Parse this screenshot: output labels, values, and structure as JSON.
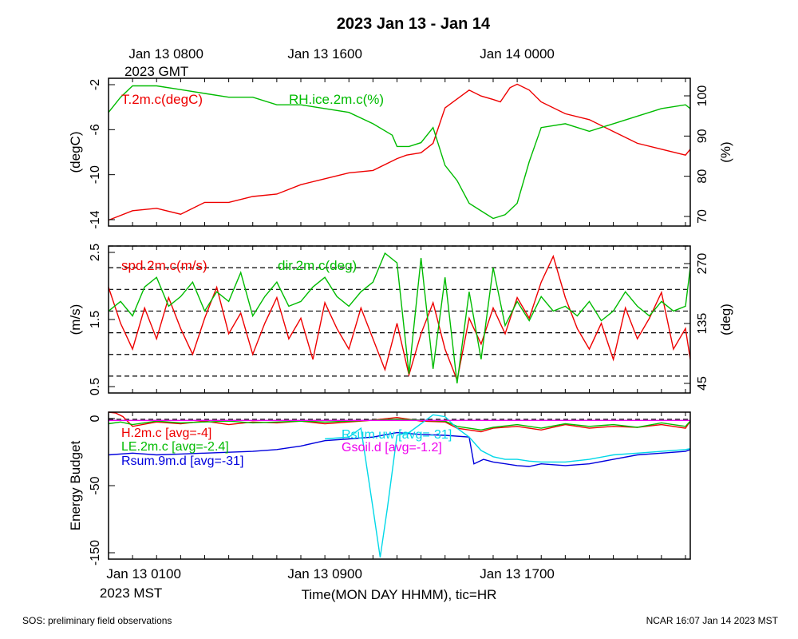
{
  "page_title": "2023 Jan 13 - Jan 14",
  "footer": {
    "left": "SOS: preliminary field observations",
    "right": "NCAR 16:07 Jan 14 2023 MST"
  },
  "time_axis": {
    "top_labels": [
      {
        "hour": 1,
        "line1": "Jan 13 0800",
        "line2": "2023 GMT"
      },
      {
        "hour": 9,
        "line1": "Jan 13 1600",
        "line2": ""
      },
      {
        "hour": 17,
        "line1": "Jan 14 0000",
        "line2": ""
      }
    ],
    "bottom_labels": [
      {
        "hour": 1,
        "line1": "Jan 13 0100",
        "line2": "2023 MST"
      },
      {
        "hour": 9,
        "line1": "Jan 13 0900",
        "line2": ""
      },
      {
        "hour": 17,
        "line1": "Jan 13 1700",
        "line2": ""
      }
    ],
    "xlabel": "Time(MON DAY HHMM), tic=HR",
    "xlim_hours_mst": [
      0.0,
      24.2
    ],
    "minor_tick_every_hours": 1
  },
  "chart_data": [
    {
      "type": "line",
      "ylabel_left": "(degC)",
      "ylabel_right": "(%)",
      "ylim_left": [
        -14.5,
        -2.0
      ],
      "ylim_right": [
        66,
        105
      ],
      "yticks_left": [
        "-2",
        "-6",
        "-10",
        "-14"
      ],
      "yticks_right": [
        "100",
        "90",
        "80",
        "70"
      ],
      "grid": false,
      "legend_placement": "top-left",
      "series": [
        {
          "name": "T.2m.c(degC)",
          "axis": "left",
          "color": "#ee0000",
          "x": [
            0.0,
            1,
            2,
            3,
            4,
            5,
            6,
            7,
            8,
            9,
            10,
            11,
            12,
            12.4,
            13,
            13.5,
            14,
            15,
            15.5,
            16,
            16.3,
            16.7,
            17,
            17.5,
            18,
            19,
            20,
            21,
            22,
            23,
            24,
            24.2
          ],
          "y": [
            -14.0,
            -13.2,
            -13.0,
            -13.5,
            -12.5,
            -12.5,
            -12.0,
            -11.8,
            -11.0,
            -10.5,
            -10.0,
            -9.8,
            -8.8,
            -8.5,
            -8.3,
            -7.5,
            -4.5,
            -3.0,
            -3.5,
            -3.8,
            -4.0,
            -2.8,
            -2.5,
            -3.0,
            -4.0,
            -5.0,
            -5.5,
            -6.5,
            -7.5,
            -8.0,
            -8.5,
            -8.0
          ]
        },
        {
          "name": "RH.ice.2m.c(%)",
          "axis": "right",
          "color": "#00bb00",
          "x": [
            0.0,
            0.5,
            1,
            2,
            3,
            4,
            5,
            6,
            7,
            8,
            9,
            10,
            11,
            11.8,
            12,
            12.5,
            13,
            13.5,
            14,
            14.5,
            15,
            15.5,
            16,
            16.5,
            17,
            17.5,
            18,
            19,
            20,
            21,
            22,
            23,
            24,
            24.2
          ],
          "y": [
            96,
            100,
            103,
            103,
            102,
            101,
            100,
            100,
            98,
            98,
            97,
            96,
            93,
            90,
            87,
            87,
            88,
            92,
            82,
            78,
            72,
            70,
            68,
            69,
            72,
            83,
            92,
            93,
            91,
            93,
            95,
            97,
            98,
            97
          ]
        }
      ]
    },
    {
      "type": "line",
      "ylabel_left": "(m/s)",
      "ylabel_right": "(deg)",
      "ylim_left": [
        0.15,
        3.0
      ],
      "ylim_right": [
        10,
        315
      ],
      "yticks_left": [
        "2.5",
        "1.5",
        "0.5"
      ],
      "yticks_right": [
        "270",
        "135",
        "45"
      ],
      "grid": true,
      "gridlines_deg": [
        45,
        90,
        135,
        180,
        225,
        270,
        315
      ],
      "legend_placement": "top-left",
      "series": [
        {
          "name": "spd.2m.c(m/s)",
          "axis": "left",
          "color": "#ee0000",
          "x": [
            0.0,
            0.5,
            1,
            1.5,
            2,
            2.5,
            3,
            3.5,
            4,
            4.5,
            5,
            5.5,
            6,
            6.5,
            7,
            7.5,
            8,
            8.5,
            9,
            9.5,
            10,
            10.5,
            11,
            11.5,
            12,
            12.5,
            13,
            13.5,
            14,
            14.5,
            15,
            15.5,
            16,
            16.5,
            17,
            17.5,
            18,
            18.5,
            19,
            19.5,
            20,
            20.5,
            21,
            21.5,
            22,
            22.5,
            23,
            23.5,
            24,
            24.2
          ],
          "y": [
            2.2,
            1.5,
            1.0,
            1.8,
            1.2,
            2.0,
            1.4,
            0.9,
            1.6,
            2.2,
            1.3,
            1.7,
            0.9,
            1.5,
            2.0,
            1.2,
            1.6,
            0.8,
            1.9,
            1.4,
            1.0,
            1.8,
            1.2,
            0.6,
            1.5,
            0.5,
            1.3,
            1.9,
            1.0,
            0.4,
            1.6,
            1.1,
            1.8,
            1.3,
            2.0,
            1.6,
            2.3,
            2.8,
            2.0,
            1.4,
            1.0,
            1.5,
            0.8,
            1.8,
            1.2,
            1.6,
            2.1,
            1.0,
            1.4,
            0.8
          ]
        },
        {
          "name": "dir.2m.c(deg)",
          "axis": "right",
          "color": "#00bb00",
          "x": [
            0.0,
            0.5,
            1,
            1.5,
            2,
            2.5,
            3,
            3.5,
            4,
            4.5,
            5,
            5.5,
            6,
            6.5,
            7,
            7.5,
            8,
            8.5,
            9,
            9.5,
            10,
            10.5,
            11,
            11.5,
            12,
            12.5,
            13,
            13.5,
            14,
            14.5,
            15,
            15.5,
            16,
            16.5,
            17,
            17.5,
            18,
            18.5,
            19,
            19.5,
            20,
            20.5,
            21,
            21.5,
            22,
            22.5,
            23,
            23.5,
            24,
            24.2
          ],
          "y": [
            180,
            200,
            170,
            230,
            250,
            190,
            210,
            240,
            180,
            220,
            200,
            260,
            170,
            210,
            240,
            190,
            200,
            230,
            250,
            210,
            190,
            220,
            240,
            300,
            280,
            50,
            290,
            60,
            250,
            30,
            220,
            80,
            270,
            150,
            200,
            160,
            210,
            180,
            190,
            170,
            200,
            160,
            180,
            220,
            190,
            170,
            200,
            180,
            190,
            270
          ]
        }
      ]
    },
    {
      "type": "line",
      "ylabel_left": "Energy Budget",
      "ylim_left": [
        -157,
        8
      ],
      "yticks_left": [
        "0",
        "-50",
        "-150"
      ],
      "grid": false,
      "zero_line": true,
      "legend_placement": "top-left",
      "series": [
        {
          "name": "H.2m.c",
          "avg_label": "[avg=-4]",
          "color": "#ee0000",
          "x": [
            0.0,
            0.3,
            0.6,
            1,
            2,
            3,
            4,
            5,
            6,
            7,
            8,
            9,
            10,
            11,
            12,
            13,
            14,
            14.5,
            15,
            15.5,
            16,
            17,
            18,
            19,
            20,
            21,
            22,
            23,
            24,
            24.2
          ],
          "y": [
            8,
            7,
            3,
            -8,
            -3,
            -5,
            -2,
            -6,
            -3,
            -4,
            -2,
            -5,
            -3,
            -1,
            2,
            -2,
            -3,
            -10,
            -12,
            -14,
            -10,
            -8,
            -12,
            -6,
            -10,
            -8,
            -9,
            -6,
            -10,
            -2
          ]
        },
        {
          "name": "LE.2m.c",
          "avg_label": "[avg=-2.4]",
          "color": "#00bb00",
          "x": [
            0.0,
            0.5,
            1,
            2,
            3,
            4,
            5,
            6,
            7,
            8,
            9,
            10,
            11,
            12,
            13,
            14,
            14.5,
            15,
            15.5,
            16,
            17,
            18,
            19,
            20,
            21,
            22,
            23,
            24,
            24.2
          ],
          "y": [
            -5,
            -3,
            -6,
            -2,
            -4,
            -3,
            -2,
            -4,
            -3,
            -2,
            -3,
            -2,
            -1,
            0,
            -1,
            -2,
            -8,
            -10,
            -12,
            -9,
            -6,
            -10,
            -5,
            -8,
            -6,
            -9,
            -4,
            -8,
            -2
          ]
        },
        {
          "name": "Rsum.9m.d",
          "avg_label": "[avg=-31]",
          "color": "#0000dd",
          "x": [
            0.0,
            1,
            2,
            3,
            4,
            5,
            6,
            7,
            8,
            9,
            10,
            11,
            12,
            13,
            14,
            15,
            15.2,
            15.6,
            16,
            17,
            17.5,
            18,
            19,
            20,
            21,
            22,
            23,
            24,
            24.2
          ],
          "y": [
            -40,
            -38,
            -40,
            -39,
            -38,
            -37,
            -36,
            -34,
            -30,
            -24,
            -22,
            -20,
            -15,
            -17,
            -18,
            -20,
            -50,
            -45,
            -48,
            -52,
            -53,
            -50,
            -52,
            -50,
            -45,
            -40,
            -38,
            -36,
            -34
          ]
        },
        {
          "name": "Rsum.uw",
          "avg_label": "[avg=-31]",
          "color": "#00d8e8",
          "x": [
            9.0,
            10,
            10.5,
            11,
            11.3,
            11.6,
            12,
            12.5,
            13,
            13.5,
            14,
            14.5,
            15,
            15.5,
            16,
            16.5,
            17,
            17.5,
            18,
            19,
            20,
            21,
            22,
            23,
            24,
            24.2
          ],
          "y": [
            -22,
            -20,
            -10,
            -100,
            -155,
            -100,
            -18,
            -15,
            -5,
            5,
            3,
            -10,
            -20,
            -35,
            -42,
            -45,
            -45,
            -47,
            -48,
            -48,
            -45,
            -40,
            -38,
            -36,
            -34,
            -33
          ]
        },
        {
          "name": "Gsoil.d",
          "avg_label": "[avg=-1.2]",
          "color": "#ee00ee",
          "x": [
            0.0,
            24.2
          ],
          "y": [
            -1.2,
            -1.2
          ]
        }
      ]
    }
  ]
}
